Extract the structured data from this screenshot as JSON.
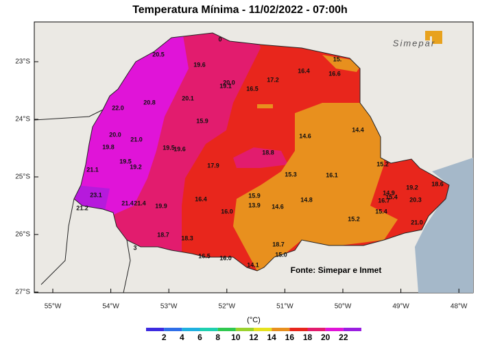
{
  "header": {
    "title": "Temperatura Mínima - 11/02/2022 - 07:00h",
    "logo": "Simepar"
  },
  "map": {
    "source": "Fonte: Simepar e Inmet",
    "lat_ticks": [
      "23°S",
      "24°S",
      "25°S",
      "26°S",
      "27°S"
    ],
    "lon_ticks": [
      "55°W",
      "54°W",
      "53°W",
      "52°W",
      "51°W",
      "50°W",
      "49°W",
      "48°W"
    ],
    "stations": [
      "20.5",
      "19.6",
      "0",
      "15.",
      "16.4",
      "16.6",
      "17.2",
      "20.0",
      "19.1",
      "16.5",
      "20.1",
      "20.8",
      "22.0",
      "15.9",
      "14.4",
      "14.6",
      "20.0",
      "21.0",
      "19.8",
      "19.5",
      "19.6",
      "18.8",
      "19.5",
      "19.2",
      "17.9",
      "15.2",
      "21.1",
      "15.3",
      "16.1",
      "19.2",
      "18.6",
      "23.1",
      "14.9",
      "15.4",
      "16.7",
      "20.3",
      "15.9",
      "16.4",
      "14.8",
      "21.4",
      "21.4",
      "13.9",
      "14.6",
      "21.2",
      "19.9",
      "16.0",
      "15.4",
      "15.2",
      "21.0",
      "18.7",
      "18.3",
      "18.7",
      "16.5",
      "16.0",
      "15.0",
      "14.1",
      "3"
    ]
  },
  "legend": {
    "unit": "(°C)",
    "labels": [
      "2",
      "4",
      "6",
      "8",
      "10",
      "12",
      "14",
      "16",
      "18",
      "20",
      "22"
    ],
    "colors": [
      "#3d2be0",
      "#2f6ee8",
      "#1fb0e0",
      "#1fd0b0",
      "#30c850",
      "#9ad22e",
      "#e6e21e",
      "#e8901e",
      "#e8261c",
      "#e21c6e",
      "#e014d8",
      "#9a1ee0"
    ]
  }
}
